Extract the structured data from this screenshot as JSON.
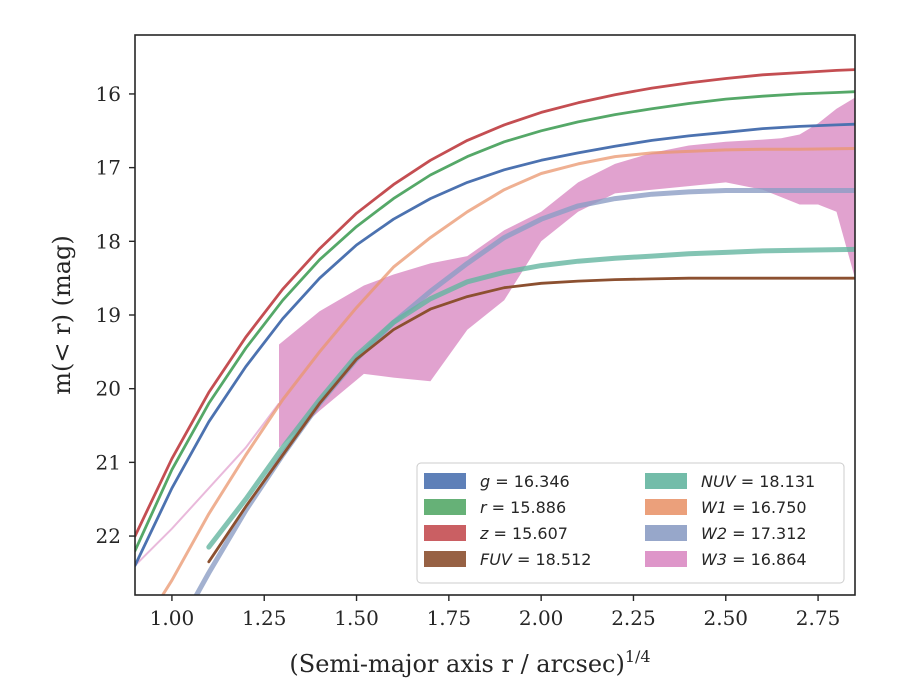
{
  "chart_data": {
    "type": "line",
    "xlabel": "(Semi-major axis r / arcsec)",
    "xlabel_sup": "1/4",
    "ylabel": "m(< r) (mag)",
    "xlim": [
      0.9,
      2.85
    ],
    "ylim": [
      22.8,
      15.2
    ],
    "y_inverted": true,
    "xticks": [
      1.0,
      1.25,
      1.5,
      1.75,
      2.0,
      2.25,
      2.5,
      2.75
    ],
    "xtick_labels": [
      "1.00",
      "1.25",
      "1.50",
      "1.75",
      "2.00",
      "2.25",
      "2.50",
      "2.75"
    ],
    "yticks": [
      16,
      17,
      18,
      19,
      20,
      21,
      22
    ],
    "ytick_labels": [
      "16",
      "17",
      "18",
      "19",
      "20",
      "21",
      "22"
    ],
    "grid": false,
    "legend_position": "lower-right",
    "series": [
      {
        "name": "g = 16.346",
        "band": "g",
        "mag": "16.346",
        "color": "#4c72b0",
        "x": [
          0.9,
          1.0,
          1.1,
          1.2,
          1.3,
          1.4,
          1.5,
          1.6,
          1.7,
          1.8,
          1.9,
          2.0,
          2.1,
          2.2,
          2.3,
          2.4,
          2.5,
          2.6,
          2.7,
          2.8,
          2.85
        ],
        "y": [
          22.4,
          21.35,
          20.45,
          19.7,
          19.05,
          18.5,
          18.05,
          17.7,
          17.42,
          17.2,
          17.03,
          16.9,
          16.8,
          16.71,
          16.63,
          16.57,
          16.52,
          16.47,
          16.44,
          16.42,
          16.41
        ]
      },
      {
        "name": "r = 15.886",
        "band": "r",
        "mag": "15.886",
        "color": "#55a868",
        "x": [
          0.9,
          1.0,
          1.1,
          1.2,
          1.3,
          1.4,
          1.5,
          1.6,
          1.7,
          1.8,
          1.9,
          2.0,
          2.1,
          2.2,
          2.3,
          2.4,
          2.5,
          2.6,
          2.7,
          2.8,
          2.85
        ],
        "y": [
          22.2,
          21.1,
          20.2,
          19.45,
          18.8,
          18.25,
          17.8,
          17.42,
          17.1,
          16.85,
          16.65,
          16.5,
          16.38,
          16.28,
          16.2,
          16.13,
          16.07,
          16.03,
          16.0,
          15.98,
          15.97
        ]
      },
      {
        "name": "z = 15.607",
        "band": "z",
        "mag": "15.607",
        "color": "#c44e52",
        "x": [
          0.9,
          1.0,
          1.1,
          1.2,
          1.3,
          1.4,
          1.5,
          1.6,
          1.7,
          1.8,
          1.9,
          2.0,
          2.1,
          2.2,
          2.3,
          2.4,
          2.5,
          2.6,
          2.7,
          2.8,
          2.85
        ],
        "y": [
          22.0,
          20.95,
          20.05,
          19.3,
          18.65,
          18.1,
          17.62,
          17.23,
          16.9,
          16.63,
          16.42,
          16.25,
          16.12,
          16.01,
          15.92,
          15.85,
          15.79,
          15.74,
          15.71,
          15.68,
          15.67
        ]
      },
      {
        "name": "FUV = 18.512",
        "band": "FUV",
        "mag": "18.512",
        "color": "#8c5030",
        "x": [
          1.1,
          1.2,
          1.3,
          1.4,
          1.5,
          1.6,
          1.7,
          1.8,
          1.9,
          2.0,
          2.1,
          2.2,
          2.3,
          2.4,
          2.52,
          2.6,
          2.7,
          2.85
        ],
        "y": [
          22.35,
          21.6,
          20.9,
          20.2,
          19.6,
          19.2,
          18.92,
          18.75,
          18.63,
          18.57,
          18.54,
          18.52,
          18.51,
          18.5,
          18.5,
          18.5,
          18.5,
          18.5
        ]
      },
      {
        "name": "NUV = 18.131",
        "band": "NUV",
        "mag": "18.131",
        "color": "#64b5a0",
        "x": [
          1.1,
          1.2,
          1.3,
          1.4,
          1.5,
          1.6,
          1.7,
          1.8,
          1.9,
          2.0,
          2.1,
          2.2,
          2.3,
          2.4,
          2.5,
          2.6,
          2.7,
          2.85
        ],
        "y": [
          22.15,
          21.5,
          20.8,
          20.15,
          19.55,
          19.1,
          18.78,
          18.55,
          18.42,
          18.33,
          18.27,
          18.23,
          18.2,
          18.17,
          18.15,
          18.13,
          18.12,
          18.11
        ]
      },
      {
        "name": "W1 = 16.750",
        "band": "W1",
        "mag": "16.750",
        "color": "#e9966d",
        "x": [
          0.9,
          1.0,
          1.1,
          1.2,
          1.3,
          1.4,
          1.5,
          1.6,
          1.7,
          1.8,
          1.9,
          2.0,
          2.1,
          2.2,
          2.3,
          2.4,
          2.5,
          2.6,
          2.7,
          2.85
        ],
        "y": [
          23.4,
          22.6,
          21.7,
          20.9,
          20.15,
          19.5,
          18.9,
          18.35,
          17.95,
          17.6,
          17.3,
          17.08,
          16.95,
          16.85,
          16.8,
          16.78,
          16.76,
          16.75,
          16.75,
          16.74
        ]
      },
      {
        "name": "W2 = 17.312",
        "band": "W2",
        "mag": "17.312",
        "color": "#8c9dc4",
        "x": [
          1.0,
          1.1,
          1.2,
          1.3,
          1.4,
          1.5,
          1.6,
          1.7,
          1.8,
          1.9,
          2.0,
          2.1,
          2.2,
          2.3,
          2.4,
          2.5,
          2.6,
          2.7,
          2.85
        ],
        "y": [
          23.4,
          22.5,
          21.65,
          20.9,
          20.2,
          19.6,
          19.1,
          18.68,
          18.3,
          17.95,
          17.7,
          17.52,
          17.42,
          17.36,
          17.33,
          17.31,
          17.31,
          17.31,
          17.31
        ]
      },
      {
        "name": "W3 = 16.864",
        "band": "W3",
        "mag": "16.864",
        "color": "#da8bc3",
        "x": [
          0.9,
          1.0,
          1.1,
          1.2,
          1.29
        ],
        "y": [
          22.4,
          21.9,
          21.35,
          20.8,
          20.2
        ],
        "band_x": [
          1.29,
          1.4,
          1.52,
          1.6,
          1.7,
          1.8,
          1.9,
          2.0,
          2.1,
          2.2,
          2.3,
          2.4,
          2.5,
          2.6,
          2.65,
          2.7,
          2.75,
          2.8,
          2.85
        ],
        "band_upper": [
          19.4,
          18.95,
          18.6,
          18.45,
          18.3,
          18.2,
          17.85,
          17.6,
          17.2,
          16.95,
          16.8,
          16.7,
          16.65,
          16.62,
          16.6,
          16.55,
          16.4,
          16.2,
          16.05
        ],
        "band_lower": [
          20.8,
          20.3,
          19.8,
          19.85,
          19.9,
          19.2,
          18.8,
          18.0,
          17.6,
          17.35,
          17.3,
          17.25,
          17.2,
          17.3,
          17.4,
          17.5,
          17.5,
          17.6,
          18.5
        ]
      }
    ]
  }
}
